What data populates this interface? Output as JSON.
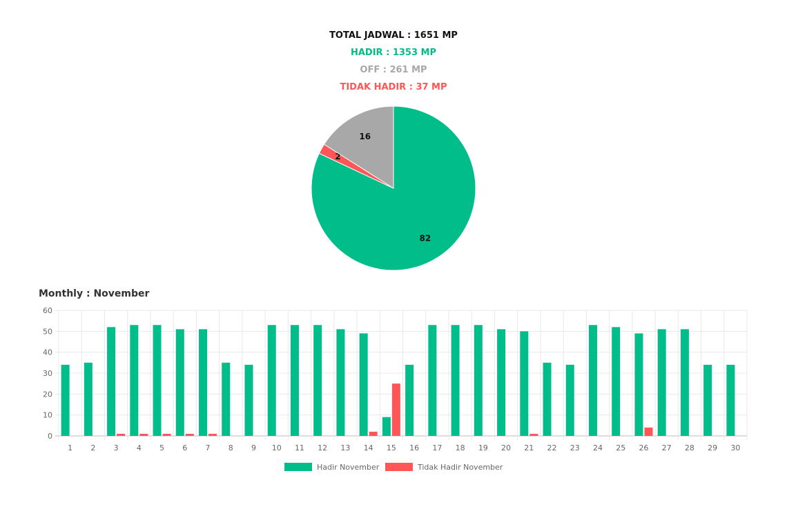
{
  "summary": {
    "total": "TOTAL JADWAL : 1651 MP",
    "hadir": "HADIR : 1353 MP",
    "off": "OFF : 261 MP",
    "tidak_hadir": "TIDAK HADIR : 37 MP"
  },
  "monthly_title": "Monthly : November",
  "chart_data": [
    {
      "type": "pie",
      "labels": [
        "Hadir",
        "Tidak Hadir",
        "Off"
      ],
      "values": [
        82,
        2,
        16
      ],
      "colors": [
        "#00bd8a",
        "#ff5757",
        "#a8a8a8"
      ]
    },
    {
      "type": "bar",
      "categories": [
        "1",
        "2",
        "3",
        "4",
        "5",
        "6",
        "7",
        "8",
        "9",
        "10",
        "11",
        "12",
        "13",
        "14",
        "15",
        "16",
        "17",
        "18",
        "19",
        "20",
        "21",
        "22",
        "23",
        "24",
        "25",
        "26",
        "27",
        "28",
        "29",
        "30"
      ],
      "series": [
        {
          "name": "Hadir November",
          "color": "#00bd8a",
          "values": [
            34,
            35,
            52,
            53,
            53,
            51,
            51,
            35,
            34,
            53,
            53,
            53,
            51,
            49,
            9,
            34,
            53,
            53,
            53,
            51,
            50,
            35,
            34,
            53,
            52,
            49,
            51,
            51,
            34,
            34
          ]
        },
        {
          "name": "Tidak Hadir November",
          "color": "#ff5757",
          "values": [
            0,
            0,
            1,
            1,
            1,
            1,
            1,
            0,
            0,
            0,
            0,
            0,
            0,
            2,
            25,
            0,
            0,
            0,
            0,
            0,
            1,
            0,
            0,
            0,
            0,
            4,
            0,
            0,
            0,
            0
          ]
        }
      ],
      "yticks": [
        "0",
        "10",
        "20",
        "30",
        "40",
        "50",
        "60"
      ],
      "ylim": [
        0,
        60
      ],
      "grid": true,
      "legend": "bottom"
    }
  ]
}
